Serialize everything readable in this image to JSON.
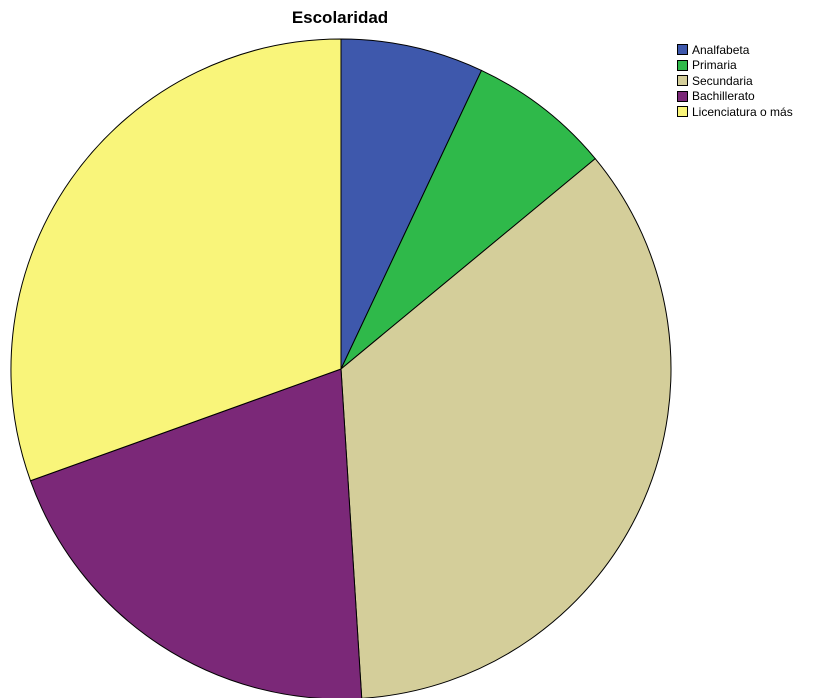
{
  "chart_data": {
    "type": "pie",
    "title": "Escolaridad",
    "categories": [
      "Analfabeta",
      "Primaria",
      "Secundaria",
      "Bachillerato",
      "Licenciatura o más"
    ],
    "values": [
      7.0,
      7.0,
      35.0,
      20.5,
      30.5
    ],
    "colors": [
      "#3e58ac",
      "#2fb94a",
      "#d4ce9a",
      "#7b2878",
      "#f9f57a"
    ],
    "start_angle_deg": 0,
    "direction": "clockwise",
    "legend_position": "top-right"
  }
}
